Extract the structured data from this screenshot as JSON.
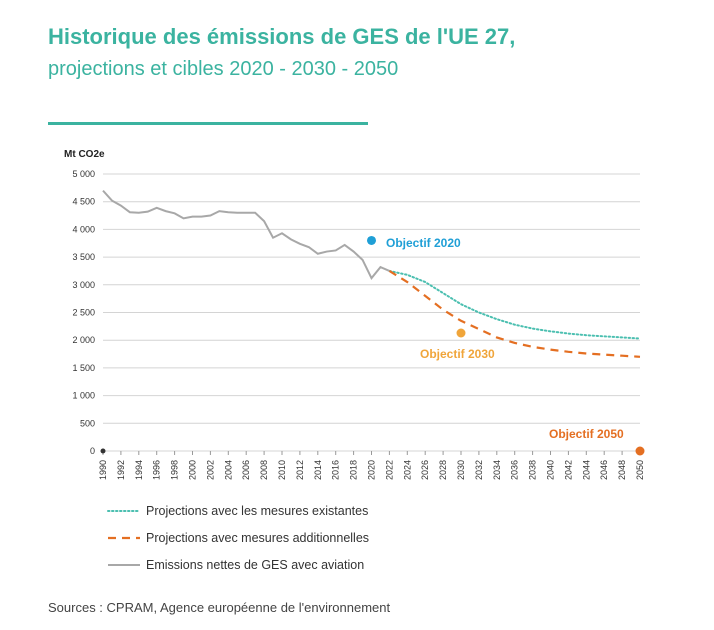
{
  "chart_data": {
    "type": "line",
    "title": "Historique des émissions de GES de l'UE 27,",
    "subtitle": "projections et cibles 2020 - 2030 - 2050",
    "ylabel": "Mt CO2e",
    "ylim": [
      0,
      5000
    ],
    "xlim": [
      1990,
      2050
    ],
    "y_ticks": [
      0,
      500,
      1000,
      1500,
      2000,
      2500,
      3000,
      3500,
      4000,
      4500,
      5000
    ],
    "y_tick_labels": [
      "0",
      "500",
      "1 000",
      "1 500",
      "2 000",
      "2 500",
      "3 000",
      "3 500",
      "4 000",
      "4 500",
      "5 000"
    ],
    "x_tick_labels": [
      "1990",
      "1992",
      "1994",
      "1996",
      "1998",
      "2000",
      "2002",
      "2004",
      "2006",
      "2008",
      "2010",
      "2012",
      "2014",
      "2016",
      "2018",
      "2020",
      "2022",
      "2024",
      "2026",
      "2028",
      "2030",
      "2032",
      "2034",
      "2036",
      "2038",
      "2040",
      "2042",
      "2044",
      "2046",
      "2048",
      "2050"
    ],
    "grid": true,
    "legend_position": "bottom",
    "series": [
      {
        "name": "Projections avec les mesures existantes",
        "style": "dotted",
        "color": "#4bbfb0",
        "x": [
          2022,
          2024,
          2026,
          2028,
          2030,
          2032,
          2034,
          2036,
          2038,
          2040,
          2042,
          2044,
          2046,
          2048,
          2050
        ],
        "y": [
          3250,
          3180,
          3050,
          2850,
          2650,
          2500,
          2380,
          2280,
          2210,
          2160,
          2120,
          2090,
          2070,
          2050,
          2030
        ]
      },
      {
        "name": "Projections avec mesures additionnelles",
        "style": "dashed",
        "color": "#e46f22",
        "x": [
          2022,
          2024,
          2026,
          2028,
          2030,
          2032,
          2034,
          2036,
          2038,
          2040,
          2042,
          2044,
          2046,
          2048,
          2050
        ],
        "y": [
          3250,
          3050,
          2800,
          2550,
          2350,
          2200,
          2050,
          1950,
          1880,
          1830,
          1790,
          1760,
          1740,
          1720,
          1700
        ]
      },
      {
        "name": "Emissions nettes de GES avec aviation",
        "style": "solid",
        "color": "#a8a8a8",
        "x": [
          1990,
          1991,
          1992,
          1993,
          1994,
          1995,
          1996,
          1997,
          1998,
          1999,
          2000,
          2001,
          2002,
          2003,
          2004,
          2005,
          2006,
          2007,
          2008,
          2009,
          2010,
          2011,
          2012,
          2013,
          2014,
          2015,
          2016,
          2017,
          2018,
          2019,
          2020,
          2021,
          2022
        ],
        "y": [
          4700,
          4520,
          4430,
          4310,
          4300,
          4320,
          4390,
          4330,
          4290,
          4200,
          4230,
          4230,
          4250,
          4330,
          4310,
          4300,
          4300,
          4300,
          4150,
          3850,
          3930,
          3820,
          3740,
          3680,
          3560,
          3600,
          3620,
          3720,
          3600,
          3450,
          3120,
          3320,
          3250
        ]
      }
    ],
    "annotations": [
      {
        "label": "Objectif 2020",
        "x": 2020,
        "y": 3800,
        "color": "#1f9fd6"
      },
      {
        "label": "Objectif 2030",
        "x": 2030,
        "y": 2130,
        "color": "#f0a53a"
      },
      {
        "label": "Objectif 2050",
        "x": 2050,
        "y": 0,
        "color": "#e46f22"
      }
    ]
  },
  "source": "Sources : CPRAM, Agence européenne de l'environnement"
}
